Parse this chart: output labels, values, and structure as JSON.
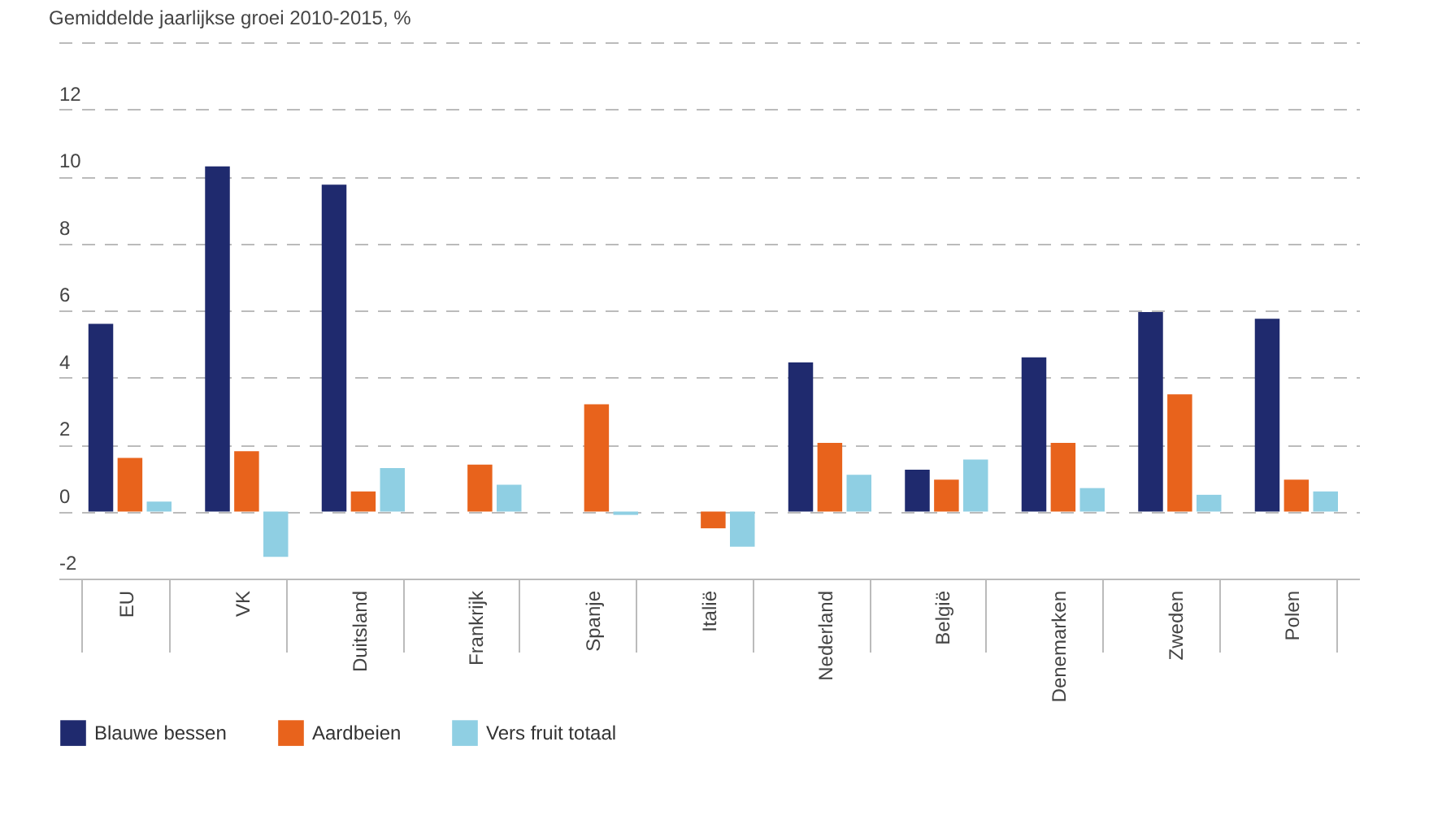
{
  "chart_data": {
    "type": "bar",
    "title": "Gemiddelde jaarlijkse groei 2010-2015, %",
    "categories": [
      "EU",
      "VK",
      "Duitsland",
      "Frankrijk",
      "Spanje",
      "Italië",
      "Nederland",
      "België",
      "Denemarken",
      "Zweden",
      "Polen"
    ],
    "series": [
      {
        "name": "Blauwe bessen",
        "color": "#1f2a6e",
        "values": [
          5.6,
          10.3,
          9.75,
          null,
          null,
          null,
          4.45,
          1.25,
          4.6,
          5.95,
          5.75
        ]
      },
      {
        "name": "Aardbeien",
        "color": "#e8631c",
        "values": [
          1.6,
          1.8,
          0.6,
          1.4,
          3.2,
          -0.5,
          2.05,
          0.95,
          2.05,
          3.5,
          0.95
        ]
      },
      {
        "name": "Vers fruit totaal",
        "color": "#8fcfe3",
        "values": [
          0.3,
          -1.35,
          1.3,
          0.8,
          -0.1,
          -1.05,
          1.1,
          1.55,
          0.7,
          0.5,
          0.6
        ]
      }
    ],
    "ylim": [
      -2,
      14
    ],
    "yticks": [
      -2,
      0,
      2,
      4,
      6,
      8,
      10,
      12,
      {
        "value": 14,
        "label": null
      }
    ],
    "grid": "y",
    "legend": "bottom left"
  }
}
